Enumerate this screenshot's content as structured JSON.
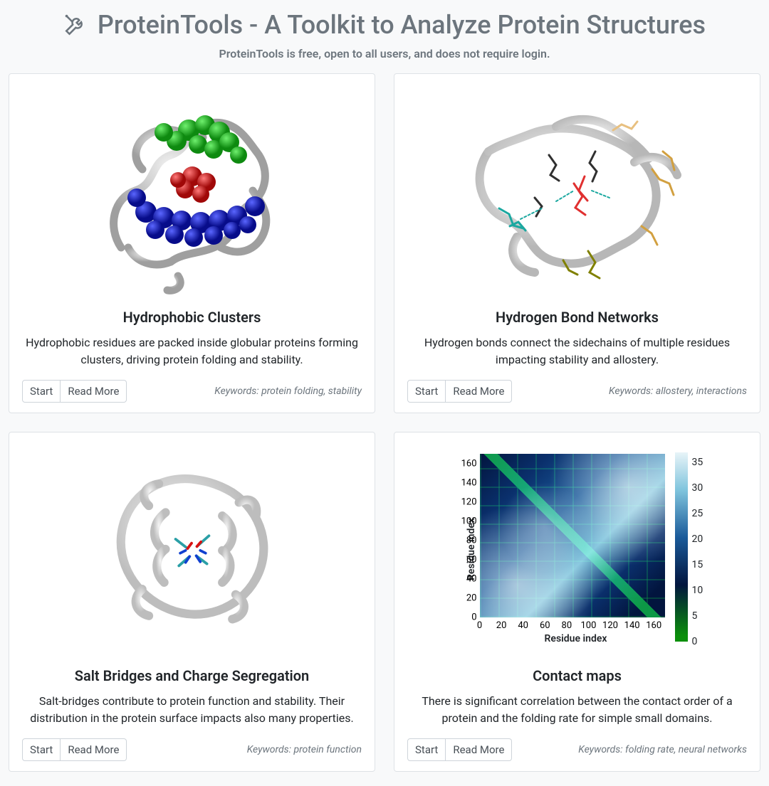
{
  "header": {
    "title": "ProteinTools - A Toolkit to Analyze Protein Structures",
    "subtitle": "ProteinTools is free, open to all users, and does not require login.",
    "icon_color": "#6c757d"
  },
  "buttons": {
    "start": "Start",
    "read_more": "Read More"
  },
  "keywords_prefix": "Keywords: ",
  "colors": {
    "page_bg": "#f8f9fa",
    "card_bg": "#ffffff",
    "card_border": "#dee2e6",
    "text_primary": "#212529",
    "text_muted": "#6c757d",
    "btn_border": "#ced4da"
  },
  "cards": [
    {
      "id": "hydrophobic",
      "title": "Hydrophobic Clusters",
      "description": "Hydrophobic residues are packed inside globular proteins forming clusters, driving protein folding and stability.",
      "keywords": "protein folding, stability",
      "image": {
        "type": "protein_clusters",
        "ribbon_color": "#c8c8c8",
        "cluster_colors": [
          "#16b81a",
          "#d81212",
          "#0d16c4"
        ]
      }
    },
    {
      "id": "hbond",
      "title": "Hydrogen Bond Networks",
      "description": "Hydrogen bonds connect the sidechains of multiple residues impacting stability and allostery.",
      "keywords": "allostery, interactions",
      "image": {
        "type": "protein_sidechains",
        "ribbon_color": "#d4d4d4",
        "sidechain_colors": [
          "#d2a040",
          "#e03030",
          "#1ba8a0",
          "#303030",
          "#808000",
          "#e8c080"
        ]
      }
    },
    {
      "id": "saltbridge",
      "title": "Salt Bridges and Charge Segregation",
      "description": "Salt-bridges contribute to protein function and stability. Their distribution in the protein surface impacts also many properties.",
      "keywords": "protein function",
      "image": {
        "type": "protein_saltbridge",
        "ribbon_color": "#dcdcdc",
        "stick_colors": [
          "#2a9fa6",
          "#d81212",
          "#1040d0"
        ]
      }
    },
    {
      "id": "contactmap",
      "title": "Contact maps",
      "description": "There is significant correlation between the contact order of a protein and the folding rate for simple small domains.",
      "keywords": "folding rate, neural networks",
      "image": {
        "type": "heatmap",
        "xlabel": "Residue index",
        "ylabel": "Residue index",
        "axis_min": 0,
        "axis_max": 170,
        "yticks": [
          0,
          20,
          40,
          60,
          80,
          100,
          120,
          140,
          160
        ],
        "xticks": [
          0,
          20,
          40,
          60,
          80,
          100,
          120,
          140,
          160
        ],
        "colorbar_min": 0,
        "colorbar_max": 37,
        "colorbar_ticks": [
          0,
          5,
          10,
          15,
          20,
          25,
          30,
          35
        ],
        "colorbar_gradient": [
          "#0b8f0b",
          "#02153e",
          "#1a5a9a",
          "#7fc4dd",
          "#e8f4f8"
        ]
      }
    }
  ]
}
